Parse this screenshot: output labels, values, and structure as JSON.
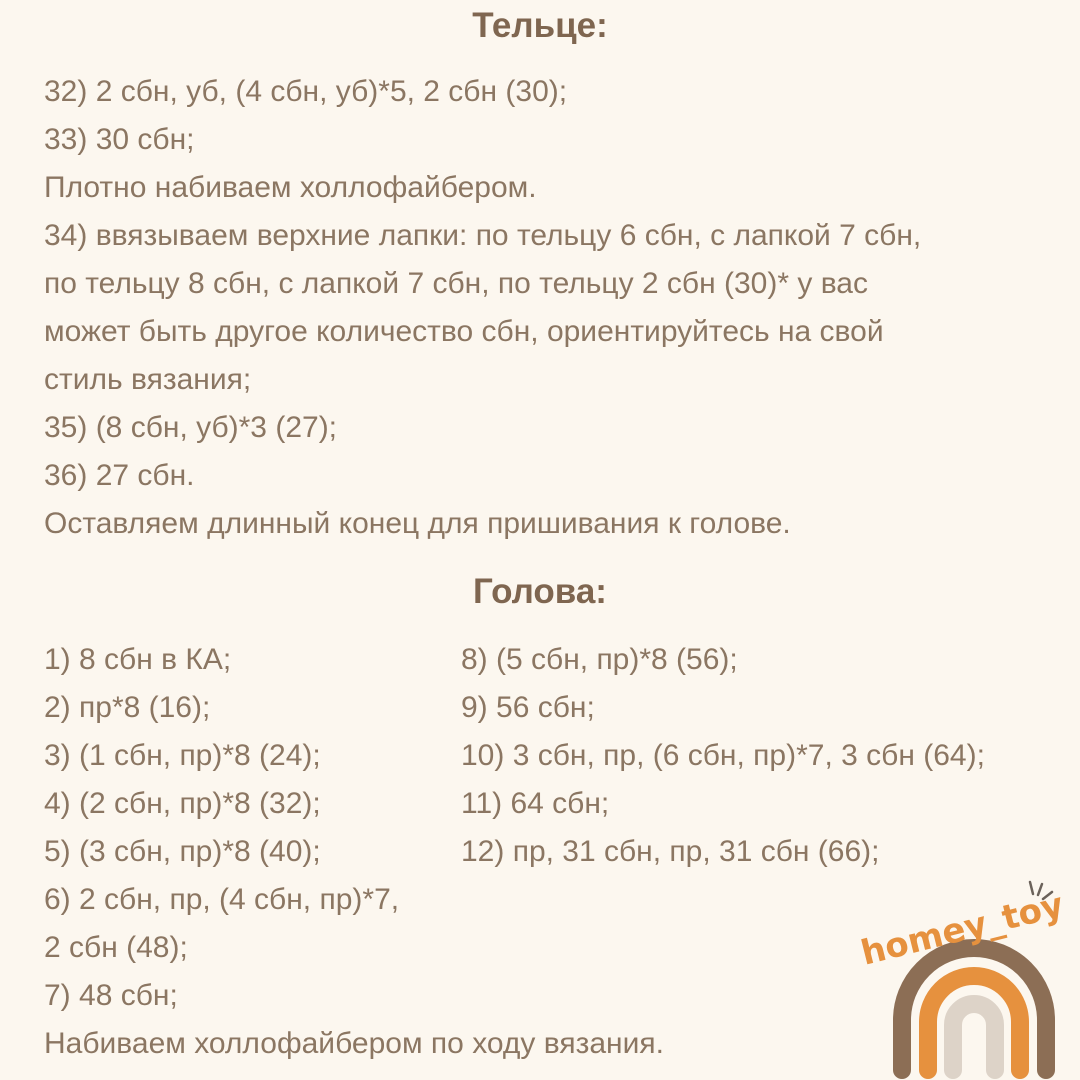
{
  "body_section": {
    "title": "Тельце:",
    "lines": [
      "32) 2 сбн, уб, (4 сбн, уб)*5, 2 сбн (30);",
      "33) 30 сбн;",
      "Плотно набиваем холлофайбером.",
      "34) ввязываем верхние лапки: по тельцу 6 сбн, с лапкой 7 сбн,",
      "по тельцу 8 сбн, с лапкой 7 сбн, по тельцу 2 сбн (30)* у вас",
      "может быть другое количество сбн, ориентируйтесь на свой",
      "стиль вязания;",
      "35) (8 сбн, уб)*3 (27);",
      "36) 27 сбн.",
      "Оставляем длинный конец для пришивания к голове."
    ]
  },
  "head_section": {
    "title": "Голова:",
    "left": [
      "1) 8 сбн в КА;",
      "2) пр*8 (16);",
      "3) (1 сбн, пр)*8 (24);",
      "4) (2 сбн, пр)*8 (32);",
      "5) (3 сбн, пр)*8 (40);",
      "6) 2 сбн, пр, (4 сбн, пр)*7,",
      "2 сбн (48);",
      "7) 48 сбн;",
      "Набиваем холлофайбером по ходу вязания."
    ],
    "right": [
      "8) (5 сбн, пр)*8 (56);",
      "9) 56 сбн;",
      "10) 3 сбн, пр, (6 сбн, пр)*7, 3 сбн (64);",
      "11) 64 сбн;",
      "12) пр, 31 сбн, пр, 31 сбн (66);"
    ]
  },
  "logo": {
    "text": "homey_toy",
    "colors": [
      "#8c6e55",
      "#e6913e",
      "#ddd3c8"
    ]
  }
}
